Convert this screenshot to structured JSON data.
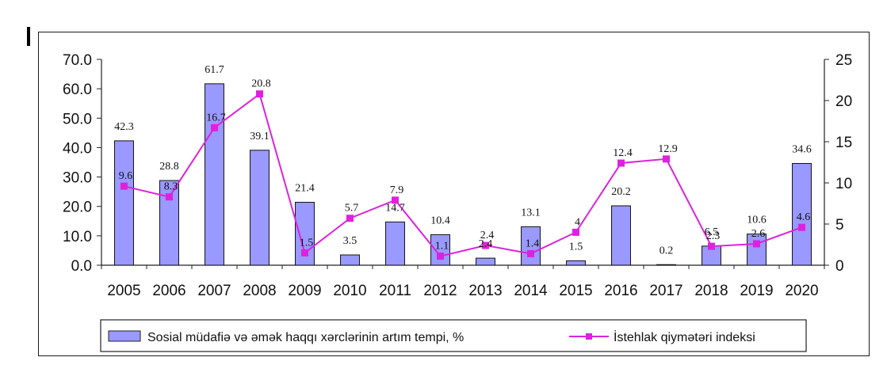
{
  "chart_data": {
    "type": "bar+line",
    "categories": [
      "2005",
      "2006",
      "2007",
      "2008",
      "2009",
      "2010",
      "2011",
      "2012",
      "2013",
      "2014",
      "2015",
      "2016",
      "2017",
      "2018",
      "2019",
      "2020"
    ],
    "series": [
      {
        "name": "Sosial müdafiə və əmək haqqı xərclərinin artım tempi, %",
        "type": "bar",
        "axis": "left",
        "color": "#9999ff",
        "values": [
          42.3,
          28.8,
          61.7,
          39.1,
          21.4,
          3.5,
          14.7,
          10.4,
          2.4,
          13.1,
          1.5,
          20.2,
          0.2,
          6.5,
          10.6,
          34.6
        ]
      },
      {
        "name": "İstehlak qiymətəri indeksi",
        "type": "line",
        "axis": "right",
        "color": "#dd22dd",
        "values": [
          9.6,
          8.3,
          16.7,
          20.8,
          1.5,
          5.7,
          7.9,
          1.1,
          2.4,
          1.4,
          4,
          12.4,
          12.9,
          2.3,
          2.6,
          4.6
        ]
      }
    ],
    "left_axis": {
      "min": 0,
      "max": 70,
      "step": 10,
      "ticks": [
        "0.0",
        "10.0",
        "20.0",
        "30.0",
        "40.0",
        "50.0",
        "60.0",
        "70.0"
      ]
    },
    "right_axis": {
      "min": 0,
      "max": 25,
      "step": 5,
      "ticks": [
        "0",
        "5",
        "10",
        "15",
        "20",
        "25"
      ]
    },
    "bar_labels": [
      "42.3",
      "28.8",
      "61.7",
      "39.1",
      "21.4",
      "3.5",
      "14.7",
      "10.4",
      "2.4",
      "13.1",
      "1.5",
      "20.2",
      "0.2",
      "6.5",
      "10.6",
      "34.6"
    ],
    "line_labels": [
      "9.6",
      "8.3",
      "16.7",
      "20.8",
      "1.5",
      "5.7",
      "7.9",
      "1.1",
      "2.4",
      "1.4",
      "4",
      "12.4",
      "12.9",
      "2.3",
      "2.6",
      "4.6"
    ],
    "grid": false,
    "legend_position": "bottom"
  }
}
